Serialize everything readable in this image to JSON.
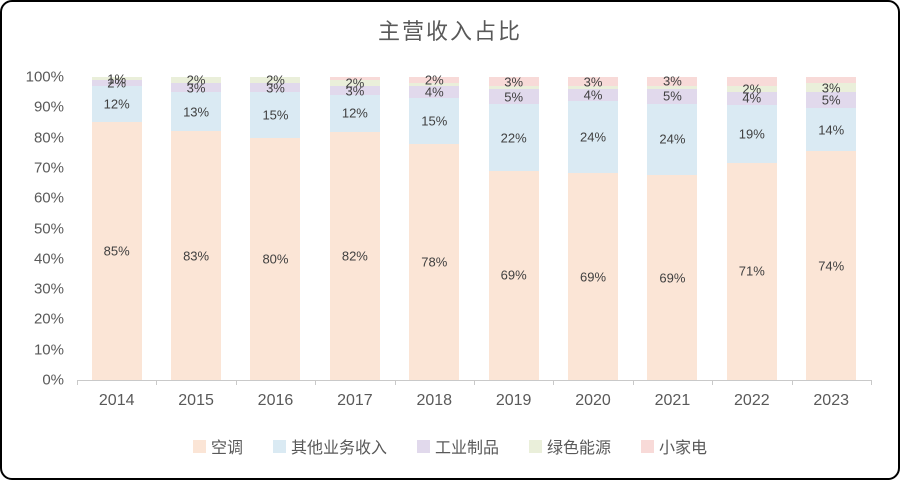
{
  "title": "主营收入占比",
  "colors": {
    "air_conditioner": "#FBE5D6",
    "other_business": "#DAEAF3",
    "industrial_products": "#E1D9EC",
    "green_energy": "#EAEFDA",
    "small_appliances": "#F8DAD8",
    "label_text": "#404040",
    "axis_text": "#595959",
    "axis_line": "#C9C9C9"
  },
  "chart_data": {
    "type": "bar",
    "variant": "stacked-100-percent",
    "title": "主营收入占比",
    "categories": [
      "2014",
      "2015",
      "2016",
      "2017",
      "2018",
      "2019",
      "2020",
      "2021",
      "2022",
      "2023"
    ],
    "series": [
      {
        "name": "空调",
        "color": "#FBE5D6",
        "values": [
          85,
          83,
          80,
          82,
          78,
          69,
          69,
          69,
          71,
          74
        ],
        "labels": [
          "85%",
          "83%",
          "80%",
          "82%",
          "78%",
          "69%",
          "69%",
          "69%",
          "71%",
          "74%"
        ]
      },
      {
        "name": "其他业务收入",
        "color": "#DAEAF3",
        "values": [
          12,
          13,
          15,
          12,
          15,
          22,
          24,
          24,
          19,
          14
        ],
        "labels": [
          "12%",
          "13%",
          "15%",
          "12%",
          "15%",
          "22%",
          "24%",
          "24%",
          "19%",
          "14%"
        ]
      },
      {
        "name": "工业制品",
        "color": "#E1D9EC",
        "values": [
          2,
          3,
          3,
          3,
          4,
          5,
          4,
          5,
          4,
          5
        ],
        "labels": [
          "2%",
          "3%",
          "3%",
          "3%",
          "4%",
          "5%",
          "4%",
          "5%",
          "4%",
          "5%"
        ]
      },
      {
        "name": "绿色能源",
        "color": "#EAEFDA",
        "values": [
          1,
          2,
          2,
          2,
          1,
          1,
          1,
          1,
          2,
          3
        ],
        "labels": [
          "1%",
          "2%",
          "2%",
          "2%",
          null,
          null,
          null,
          null,
          "2%",
          "3%"
        ]
      },
      {
        "name": "小家电",
        "color": "#F8DAD8",
        "values": [
          0,
          0,
          0,
          1,
          2,
          3,
          3,
          3,
          3,
          2
        ],
        "labels": [
          null,
          null,
          null,
          null,
          "2%",
          "3%",
          "3%",
          "3%",
          null,
          null
        ]
      }
    ],
    "y_axis": {
      "min": 0,
      "max": 100,
      "ticks": [
        "0%",
        "10%",
        "20%",
        "30%",
        "40%",
        "50%",
        "60%",
        "70%",
        "80%",
        "90%",
        "100%"
      ]
    },
    "grid": false,
    "legend_position": "bottom"
  },
  "legend": {
    "items": [
      {
        "label": "空调",
        "color": "#FBE5D6"
      },
      {
        "label": "其他业务收入",
        "color": "#DAEAF3"
      },
      {
        "label": "工业制品",
        "color": "#E1D9EC"
      },
      {
        "label": "绿色能源",
        "color": "#EAEFDA"
      },
      {
        "label": "小家电",
        "color": "#F8DAD8"
      }
    ]
  }
}
